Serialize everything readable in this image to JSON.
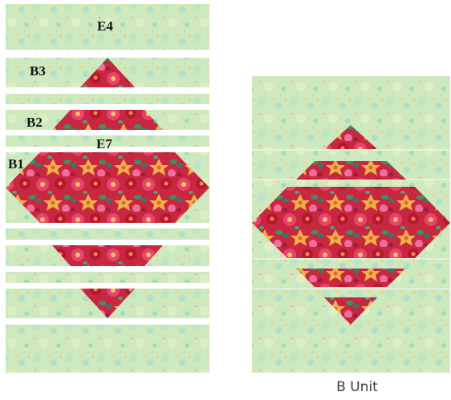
{
  "labels": {
    "e4": "E4",
    "b3": "B3",
    "b2": "B2",
    "e7": "E7",
    "b1": "B1"
  },
  "caption": "B Unit",
  "colors": {
    "background_fabric": "#cfe9bf",
    "background_fabric_accent": "#8fd6c4",
    "floral_fabric": "#d8344a",
    "floral_fabric_accent": "#f2b04a",
    "floral_leaf": "#3f8f63",
    "label_text": "#141414",
    "caption_text": "#3a3a3a"
  },
  "icons": {
    "background_fabric": "mint-floral-print-texture",
    "floral_fabric": "red-pink-floral-print-texture"
  }
}
